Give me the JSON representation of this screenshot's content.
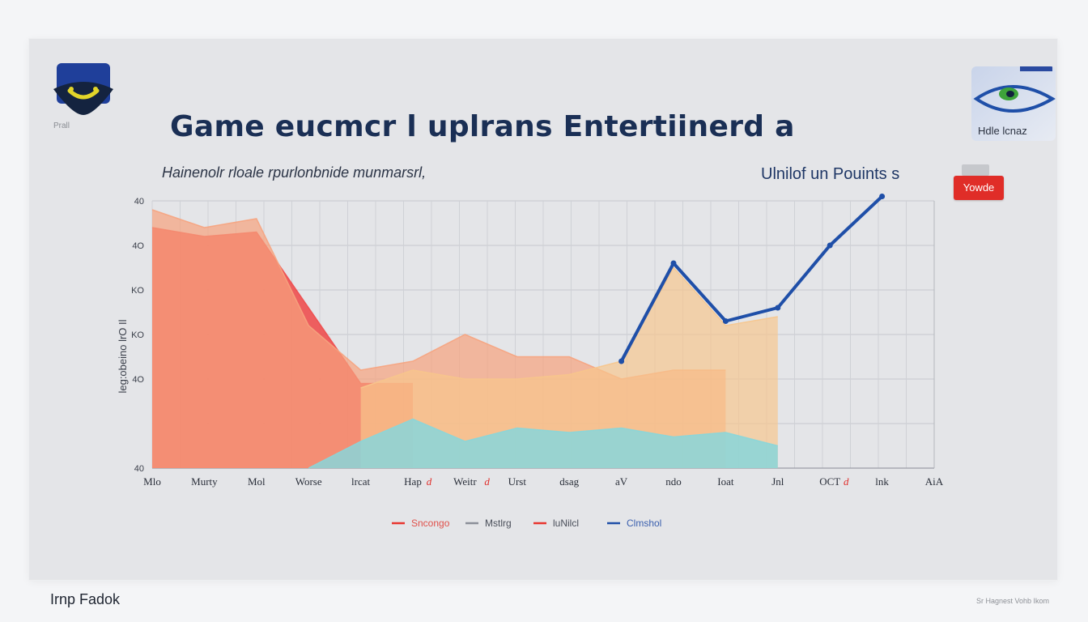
{
  "header": {
    "title": "Game eucmcr l uplrans Entertiinerd a",
    "subtitle": "Hainenolr rloale rpurlonbnide  munmarsrl,",
    "units_label": "Ulnilof un Pouints s",
    "badge_label": "Yowde",
    "corner_card_label": "Hdle lcnaz",
    "logo_caption": "Prall",
    "accent_color": "#e02d28",
    "title_color": "#1a2f55"
  },
  "footer": {
    "left_text": "Irnp Fadok",
    "right_text": "Sr Hagnest Vohb Ikom"
  },
  "chart_data": {
    "type": "area",
    "ylabel": "leg:obeino lrO Il",
    "ylim": [
      0,
      6
    ],
    "y_tick_labels": [
      "40",
      "",
      "4O",
      "KO",
      "KO",
      "4O",
      "40"
    ],
    "x_tick_labels": [
      "Mlo",
      "Murty",
      "Mol",
      "Worse",
      "lrcat",
      "Hap",
      "Weitr",
      "Urst",
      "dsag",
      "aV",
      "ndo",
      "Ioat",
      "Jnl",
      "OCT",
      "lnk",
      "AiA"
    ],
    "x_tick_accents": [
      "",
      "",
      "",
      "",
      "",
      "d",
      "d",
      "",
      "",
      "",
      "",
      "",
      "",
      "d",
      "",
      ""
    ],
    "grid": true,
    "legend_position": "bottom",
    "legend": [
      {
        "label": "Sncongo",
        "color": "#e8352f"
      },
      {
        "label": "Mstlrg",
        "color": "#8b8f99"
      },
      {
        "label": "luNilcl",
        "color": "#e8352f"
      },
      {
        "label": "Clmshol",
        "color": "#1f4fa8"
      }
    ],
    "x": [
      0,
      1,
      2,
      3,
      4,
      5,
      6,
      7,
      8,
      9,
      10,
      11,
      12,
      13,
      14,
      15
    ],
    "series": [
      {
        "color": "#ee4b4b",
        "opacity": 0.88,
        "values": [
          5.4,
          5.2,
          5.3,
          3.6,
          1.9,
          1.9,
          null,
          null,
          null,
          null,
          null,
          null,
          null,
          null,
          null,
          null
        ]
      },
      {
        "color": "#f6a37e",
        "opacity": 0.7,
        "values": [
          5.8,
          5.4,
          5.6,
          3.2,
          2.2,
          2.4,
          3.0,
          2.5,
          2.5,
          2.0,
          2.2,
          2.2,
          null,
          null,
          null,
          null
        ]
      },
      {
        "color": "#f7c58c",
        "opacity": 0.68,
        "values": [
          null,
          null,
          null,
          null,
          1.8,
          2.2,
          2.0,
          2.0,
          2.1,
          2.4,
          4.5,
          3.2,
          3.4,
          null,
          null,
          null
        ]
      },
      {
        "color": "#88d6da",
        "opacity": 0.85,
        "values": [
          null,
          null,
          null,
          0.0,
          0.6,
          1.1,
          0.6,
          0.9,
          0.8,
          0.9,
          0.7,
          0.8,
          0.5,
          null,
          null,
          null
        ]
      },
      {
        "color": "#1f4fa8",
        "opacity": 1,
        "kind": "line",
        "values": [
          null,
          null,
          null,
          null,
          null,
          null,
          null,
          null,
          null,
          2.4,
          4.6,
          3.3,
          3.6,
          5.0,
          6.1,
          null
        ]
      }
    ]
  }
}
